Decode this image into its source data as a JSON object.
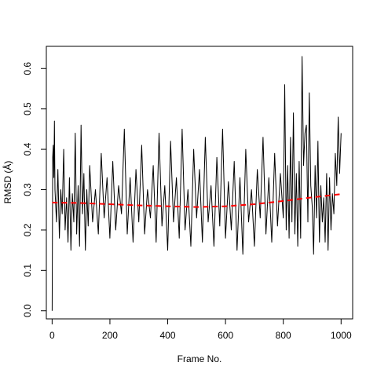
{
  "chart_data": {
    "type": "line",
    "title": "",
    "xlabel": "Frame No.",
    "ylabel": "RMSD (Å)",
    "xlim": [
      -20,
      1040
    ],
    "ylim": [
      -0.02,
      0.655
    ],
    "x_ticks": [
      0,
      200,
      400,
      600,
      800,
      1000
    ],
    "x_tick_labels": [
      "0",
      "200",
      "400",
      "600",
      "800",
      "1000"
    ],
    "y_ticks": [
      0.0,
      0.1,
      0.2,
      0.3,
      0.4,
      0.5,
      0.6
    ],
    "y_tick_labels": [
      "0.0",
      "0.1",
      "0.2",
      "0.3",
      "0.4",
      "0.5",
      "0.6"
    ],
    "grid": false,
    "legend": "none",
    "series": [
      {
        "style": "solid",
        "color": "#000000",
        "x": [
          0,
          2,
          4,
          6,
          8,
          10,
          15,
          20,
          25,
          30,
          35,
          40,
          45,
          50,
          55,
          60,
          65,
          70,
          75,
          80,
          85,
          90,
          95,
          100,
          105,
          110,
          115,
          120,
          125,
          130,
          140,
          150,
          160,
          170,
          180,
          190,
          200,
          210,
          220,
          230,
          240,
          250,
          260,
          270,
          280,
          290,
          300,
          310,
          320,
          330,
          340,
          350,
          360,
          370,
          380,
          390,
          400,
          410,
          420,
          430,
          440,
          450,
          460,
          470,
          480,
          490,
          500,
          510,
          520,
          530,
          540,
          550,
          560,
          570,
          580,
          590,
          600,
          610,
          620,
          630,
          640,
          650,
          660,
          670,
          680,
          690,
          700,
          710,
          720,
          730,
          740,
          750,
          760,
          770,
          780,
          790,
          800,
          805,
          810,
          815,
          820,
          825,
          830,
          835,
          840,
          845,
          850,
          855,
          860,
          865,
          870,
          875,
          880,
          885,
          890,
          895,
          900,
          905,
          910,
          915,
          920,
          925,
          930,
          935,
          940,
          945,
          950,
          955,
          960,
          965,
          970,
          975,
          980,
          985,
          990,
          995,
          1000
        ],
        "y": [
          0.0,
          0.38,
          0.41,
          0.33,
          0.47,
          0.3,
          0.22,
          0.35,
          0.18,
          0.3,
          0.24,
          0.4,
          0.2,
          0.28,
          0.17,
          0.33,
          0.15,
          0.29,
          0.22,
          0.44,
          0.19,
          0.31,
          0.16,
          0.46,
          0.24,
          0.34,
          0.15,
          0.3,
          0.21,
          0.36,
          0.22,
          0.3,
          0.19,
          0.39,
          0.23,
          0.33,
          0.18,
          0.37,
          0.2,
          0.31,
          0.24,
          0.45,
          0.19,
          0.33,
          0.17,
          0.35,
          0.22,
          0.41,
          0.19,
          0.3,
          0.23,
          0.36,
          0.17,
          0.44,
          0.21,
          0.31,
          0.15,
          0.42,
          0.22,
          0.33,
          0.18,
          0.45,
          0.2,
          0.3,
          0.16,
          0.4,
          0.23,
          0.35,
          0.17,
          0.43,
          0.22,
          0.31,
          0.16,
          0.38,
          0.21,
          0.45,
          0.18,
          0.32,
          0.2,
          0.37,
          0.15,
          0.33,
          0.14,
          0.4,
          0.22,
          0.3,
          0.16,
          0.35,
          0.23,
          0.43,
          0.19,
          0.33,
          0.17,
          0.39,
          0.21,
          0.34,
          0.23,
          0.56,
          0.2,
          0.36,
          0.18,
          0.43,
          0.22,
          0.49,
          0.19,
          0.34,
          0.16,
          0.37,
          0.18,
          0.63,
          0.36,
          0.44,
          0.46,
          0.22,
          0.54,
          0.31,
          0.26,
          0.14,
          0.36,
          0.23,
          0.42,
          0.17,
          0.31,
          0.22,
          0.28,
          0.17,
          0.34,
          0.15,
          0.33,
          0.2,
          0.29,
          0.24,
          0.39,
          0.31,
          0.48,
          0.34,
          0.44
        ]
      },
      {
        "style": "dashed",
        "color": "#ff0000",
        "x": [
          0,
          100,
          200,
          300,
          400,
          500,
          600,
          700,
          800,
          900,
          1000
        ],
        "y": [
          0.268,
          0.267,
          0.264,
          0.261,
          0.259,
          0.257,
          0.259,
          0.264,
          0.272,
          0.281,
          0.289
        ]
      }
    ]
  }
}
